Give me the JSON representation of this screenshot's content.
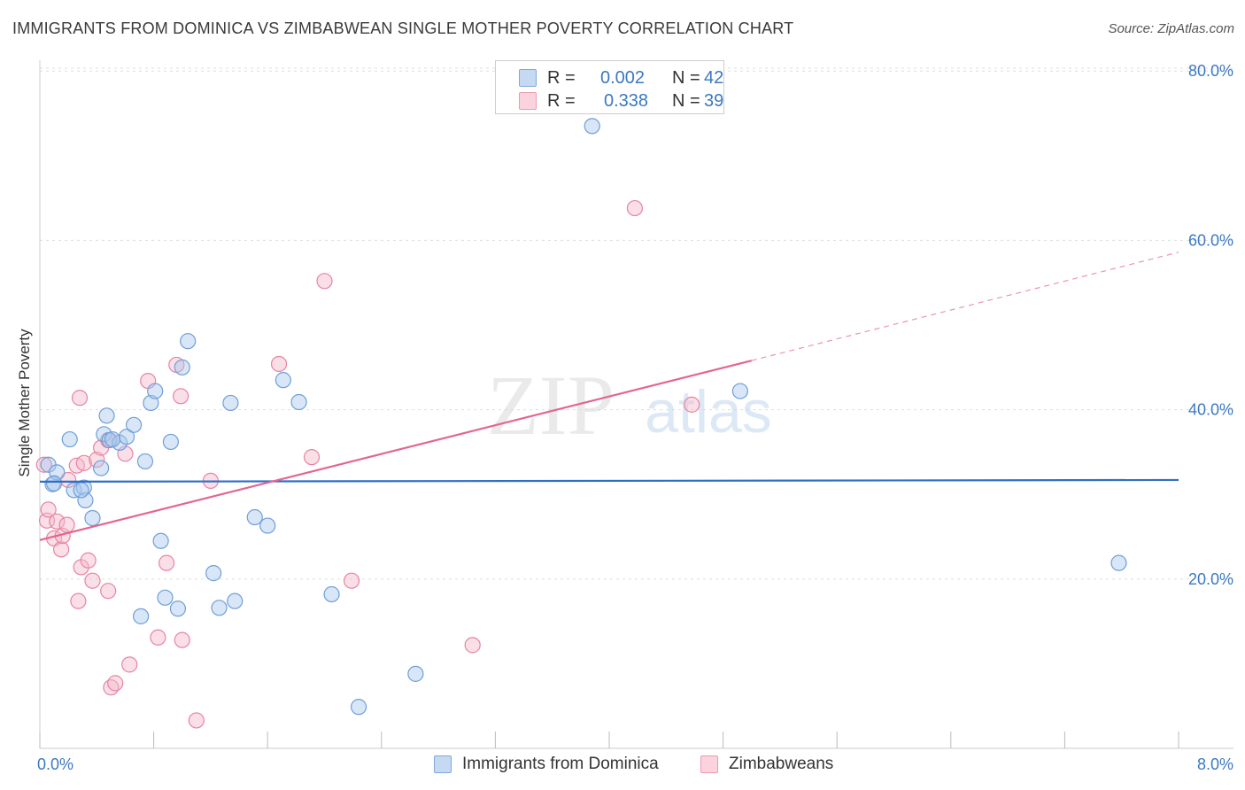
{
  "header": {
    "title": "IMMIGRANTS FROM DOMINICA VS ZIMBABWEAN SINGLE MOTHER POVERTY CORRELATION CHART",
    "source": "Source: ZipAtlas.com"
  },
  "watermark": {
    "zip": "ZIP",
    "atlas": "atlas"
  },
  "legend": {
    "rows": [
      {
        "r_label": "R =",
        "r_value": "0.002",
        "n_label": "N =",
        "n_value": "42"
      },
      {
        "r_label": "R =",
        "r_value": "0.338",
        "n_label": "N =",
        "n_value": "39"
      }
    ]
  },
  "bottom_legend": {
    "series1": "Immigrants from Dominica",
    "series2": "Zimbabweans"
  },
  "colors": {
    "blue_fill": "#a9c7ee",
    "blue_stroke": "#6f9fd8",
    "blue_line": "#2f6fc4",
    "pink_fill": "#f5b8cb",
    "pink_stroke": "#e8849f",
    "pink_line": "#e3668f",
    "axis_text": "#3b78c3",
    "grid": "#dddddd"
  },
  "chart_data": {
    "type": "scatter",
    "title": "IMMIGRANTS FROM DOMINICA VS ZIMBABWEAN SINGLE MOTHER POVERTY CORRELATION CHART",
    "xlabel": "",
    "ylabel": "Single Mother Poverty",
    "xlim": [
      0,
      8
    ],
    "ylim": [
      0,
      83
    ],
    "x_tick_labels": [
      "0.0%",
      "8.0%"
    ],
    "y_ticks": [
      20,
      40,
      60,
      80
    ],
    "y_tick_labels": [
      "20.0%",
      "40.0%",
      "60.0%",
      "80.0%"
    ],
    "grid": true,
    "series": [
      {
        "name": "Immigrants from Dominica",
        "color": "#6f9fd8",
        "points": [
          [
            0.06,
            33.5
          ],
          [
            0.09,
            31.2
          ],
          [
            0.12,
            32.6
          ],
          [
            0.21,
            36.5
          ],
          [
            0.24,
            30.5
          ],
          [
            0.31,
            30.8
          ],
          [
            0.32,
            29.3
          ],
          [
            0.37,
            27.2
          ],
          [
            0.43,
            33.1
          ],
          [
            0.45,
            37.1
          ],
          [
            0.47,
            39.3
          ],
          [
            0.49,
            36.4
          ],
          [
            0.56,
            36.1
          ],
          [
            0.61,
            36.8
          ],
          [
            0.66,
            38.2
          ],
          [
            0.74,
            33.9
          ],
          [
            0.78,
            40.8
          ],
          [
            0.81,
            42.2
          ],
          [
            0.85,
            24.5
          ],
          [
            0.88,
            17.8
          ],
          [
            0.92,
            36.2
          ],
          [
            0.97,
            16.5
          ],
          [
            1.0,
            45.0
          ],
          [
            1.04,
            48.1
          ],
          [
            1.22,
            20.7
          ],
          [
            1.26,
            16.6
          ],
          [
            1.34,
            40.8
          ],
          [
            1.37,
            17.4
          ],
          [
            1.51,
            27.3
          ],
          [
            1.6,
            26.3
          ],
          [
            1.71,
            43.5
          ],
          [
            1.82,
            40.9
          ],
          [
            2.05,
            18.2
          ],
          [
            2.24,
            4.9
          ],
          [
            2.64,
            8.8
          ],
          [
            3.88,
            73.5
          ],
          [
            4.92,
            42.2
          ],
          [
            7.58,
            21.9
          ],
          [
            0.51,
            36.5
          ],
          [
            0.1,
            31.3
          ],
          [
            0.29,
            30.5
          ],
          [
            0.71,
            15.6
          ]
        ],
        "trend": {
          "y_at_x0": 31.5,
          "y_at_x8": 31.7
        }
      },
      {
        "name": "Zimbabweans",
        "color": "#e8849f",
        "points": [
          [
            0.03,
            33.5
          ],
          [
            0.05,
            26.9
          ],
          [
            0.06,
            28.2
          ],
          [
            0.1,
            24.8
          ],
          [
            0.12,
            26.8
          ],
          [
            0.15,
            23.5
          ],
          [
            0.16,
            25.1
          ],
          [
            0.19,
            26.4
          ],
          [
            0.2,
            31.7
          ],
          [
            0.26,
            33.4
          ],
          [
            0.27,
            17.4
          ],
          [
            0.28,
            41.4
          ],
          [
            0.29,
            21.4
          ],
          [
            0.31,
            33.7
          ],
          [
            0.34,
            22.2
          ],
          [
            0.37,
            19.8
          ],
          [
            0.4,
            34.1
          ],
          [
            0.43,
            35.5
          ],
          [
            0.48,
            36.4
          ],
          [
            0.48,
            18.6
          ],
          [
            0.5,
            7.2
          ],
          [
            0.53,
            7.7
          ],
          [
            0.6,
            34.8
          ],
          [
            0.63,
            9.9
          ],
          [
            0.76,
            43.4
          ],
          [
            0.83,
            13.1
          ],
          [
            0.89,
            21.9
          ],
          [
            0.96,
            45.3
          ],
          [
            0.99,
            41.6
          ],
          [
            1.0,
            12.8
          ],
          [
            1.1,
            3.3
          ],
          [
            1.2,
            31.6
          ],
          [
            1.68,
            45.4
          ],
          [
            1.91,
            34.4
          ],
          [
            2.0,
            55.2
          ],
          [
            2.19,
            19.8
          ],
          [
            3.04,
            12.2
          ],
          [
            4.18,
            63.8
          ],
          [
            4.58,
            40.6
          ]
        ],
        "trend": {
          "y_at_x0": 24.6,
          "y_at_x5": 45.8,
          "y_at_x8": 58.6
        }
      }
    ]
  }
}
